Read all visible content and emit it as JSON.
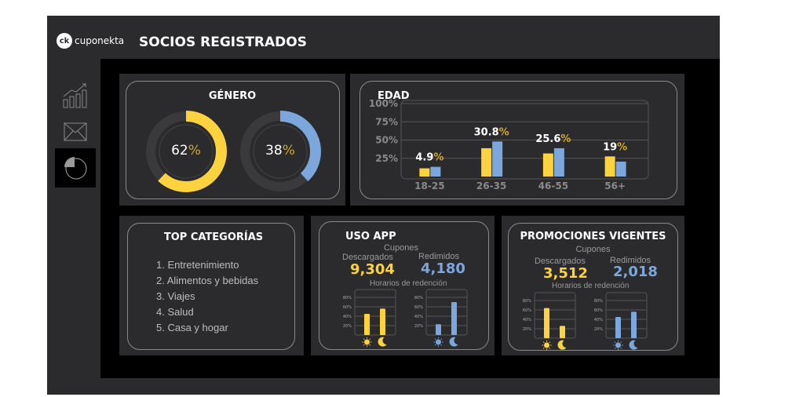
{
  "header": {
    "logo_text": "cuponekta",
    "logo_mark": "ck",
    "title": "SOCIOS REGISTRADOS"
  },
  "sidebar": {
    "items": [
      {
        "name": "growth-chart-icon"
      },
      {
        "name": "mail-icon"
      },
      {
        "name": "pie-chart-icon",
        "active": true
      }
    ]
  },
  "colors": {
    "yellow": "#fdd23f",
    "blue": "#7ba7dc"
  },
  "genero": {
    "title": "GÉNERO",
    "female": {
      "value": "62",
      "pct": "%",
      "fraction": 0.62
    },
    "male": {
      "value": "38",
      "pct": "%",
      "fraction": 0.38
    }
  },
  "chart_data": [
    {
      "type": "bar",
      "title": "EDAD",
      "categories": [
        "18-25",
        "26-35",
        "46-55",
        "56+"
      ],
      "yticks": [
        "25%",
        "50%",
        "75%",
        "100%"
      ],
      "ylim": [
        0,
        100
      ],
      "labels": [
        "4.9",
        "30.8",
        "25.6",
        "19"
      ],
      "pct": "%",
      "series": [
        {
          "name": "yellow",
          "values": [
            11,
            38,
            31,
            27
          ]
        },
        {
          "name": "blue",
          "values": [
            13,
            47,
            38,
            20
          ]
        }
      ]
    },
    {
      "type": "bar",
      "title": "USO APP horarios descargados",
      "categories": [
        "day",
        "night"
      ],
      "yticks": [
        "20%",
        "40%",
        "60%",
        "80%"
      ],
      "ylim": [
        0,
        100
      ],
      "values": [
        45,
        56
      ],
      "color": "yellow"
    },
    {
      "type": "bar",
      "title": "USO APP horarios redimidos",
      "categories": [
        "day",
        "night"
      ],
      "yticks": [
        "20%",
        "40%",
        "60%",
        "80%"
      ],
      "ylim": [
        0,
        100
      ],
      "values": [
        23,
        70
      ],
      "color": "blue"
    },
    {
      "type": "bar",
      "title": "PROMOCIONES horarios descargados",
      "categories": [
        "day",
        "night"
      ],
      "yticks": [
        "20%",
        "40%",
        "60%",
        "80%"
      ],
      "ylim": [
        0,
        100
      ],
      "values": [
        64,
        26
      ],
      "color": "yellow"
    },
    {
      "type": "bar",
      "title": "PROMOCIONES horarios redimidos",
      "categories": [
        "day",
        "night"
      ],
      "yticks": [
        "20%",
        "40%",
        "60%",
        "80%"
      ],
      "ylim": [
        0,
        100
      ],
      "values": [
        45,
        56
      ],
      "color": "blue"
    }
  ],
  "top": {
    "title": "TOP CATEGORÍAS",
    "items": [
      "1. Entretenimiento",
      "2. Alimentos y bebidas",
      "3. Viajes",
      "4. Salud",
      "5. Casa y hogar"
    ]
  },
  "uso": {
    "title": "USO APP",
    "cupones": "Cupones",
    "desc_label": "Descargados",
    "desc": "9,304",
    "red_label": "Redimidos",
    "red": "4,180",
    "horarios": "Horarios  de redención"
  },
  "promo": {
    "title": "PROMOCIONES VIGENTES",
    "cupones": "Cupones",
    "desc_label": "Descargados",
    "desc": "3,512",
    "red_label": "Redimidos",
    "red": "2,018",
    "horarios": "Horarios  de redención"
  }
}
